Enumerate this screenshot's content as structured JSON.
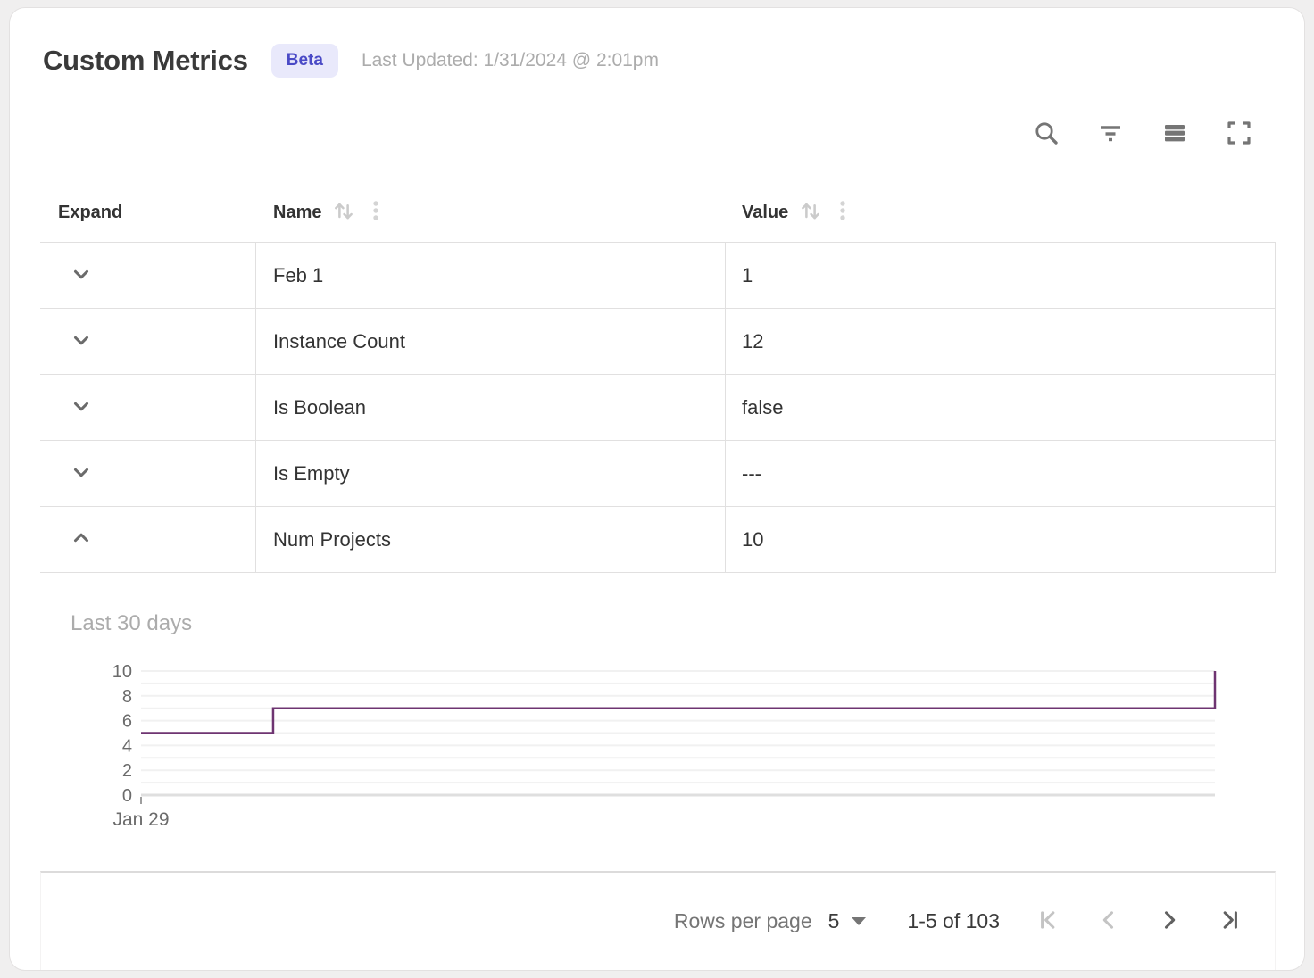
{
  "header": {
    "title": "Custom Metrics",
    "badge": "Beta",
    "last_updated": "Last Updated: 1/31/2024 @ 2:01pm"
  },
  "toolbar": {
    "icons": [
      "search",
      "filter",
      "density",
      "fullscreen"
    ]
  },
  "table": {
    "columns": {
      "expand": "Expand",
      "name": "Name",
      "value": "Value"
    },
    "rows": [
      {
        "name": "Feb 1",
        "value": "1",
        "expanded": false
      },
      {
        "name": "Instance Count",
        "value": "12",
        "expanded": false
      },
      {
        "name": "Is Boolean",
        "value": "false",
        "expanded": false
      },
      {
        "name": "Is Empty",
        "value": "---",
        "expanded": false
      },
      {
        "name": "Num Projects",
        "value": "10",
        "expanded": true
      }
    ]
  },
  "chart_data": {
    "type": "line",
    "subtype": "step",
    "title": "Last 30 days",
    "series": [
      {
        "name": "Num Projects",
        "color": "#6E3471",
        "step_points": [
          [
            0,
            5
          ],
          [
            0.123,
            5
          ],
          [
            0.123,
            7
          ],
          [
            1,
            7
          ],
          [
            1,
            10
          ]
        ]
      }
    ],
    "ylim": [
      0,
      10
    ],
    "grid_step": 1,
    "y_tick_labels": [
      0,
      2,
      4,
      6,
      8,
      10
    ],
    "x_tick_labels": [
      "Jan 29"
    ],
    "legend": "none",
    "grid": "horizontal"
  },
  "footer": {
    "rows_per_page_label": "Rows per page",
    "rows_per_page_value": "5",
    "range_label": "1-5 of 103"
  },
  "colors": {
    "badge_bg": "#E9E9FB",
    "badge_text": "#4A4AC6",
    "line": "#6E3471",
    "icon_gray": "#757575",
    "disabled_icon": "#C4C4C4",
    "border": "#E1E0E0"
  }
}
